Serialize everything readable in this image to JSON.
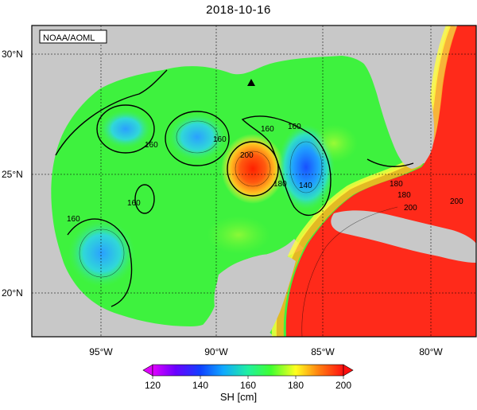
{
  "title": "2018-10-16",
  "credit": "NOAA/AOML",
  "colorbar_label": "SH [cm]",
  "colorbar_ticks": [
    "120",
    "140",
    "160",
    "180",
    "200"
  ],
  "lat_labels": [
    "30°N",
    "25°N",
    "20°N"
  ],
  "lon_labels": [
    "95°W",
    "90°W",
    "85°W",
    "80°W"
  ],
  "contour_labels": [
    "160",
    "160",
    "160",
    "160",
    "160",
    "160",
    "180",
    "200",
    "140",
    "180",
    "200",
    "200",
    "180"
  ],
  "colors": {
    "land": "#c8c8c8",
    "ocean_base": "#3ef23e",
    "warm": "#ff2a1a",
    "cool": "#2a8cff"
  }
}
